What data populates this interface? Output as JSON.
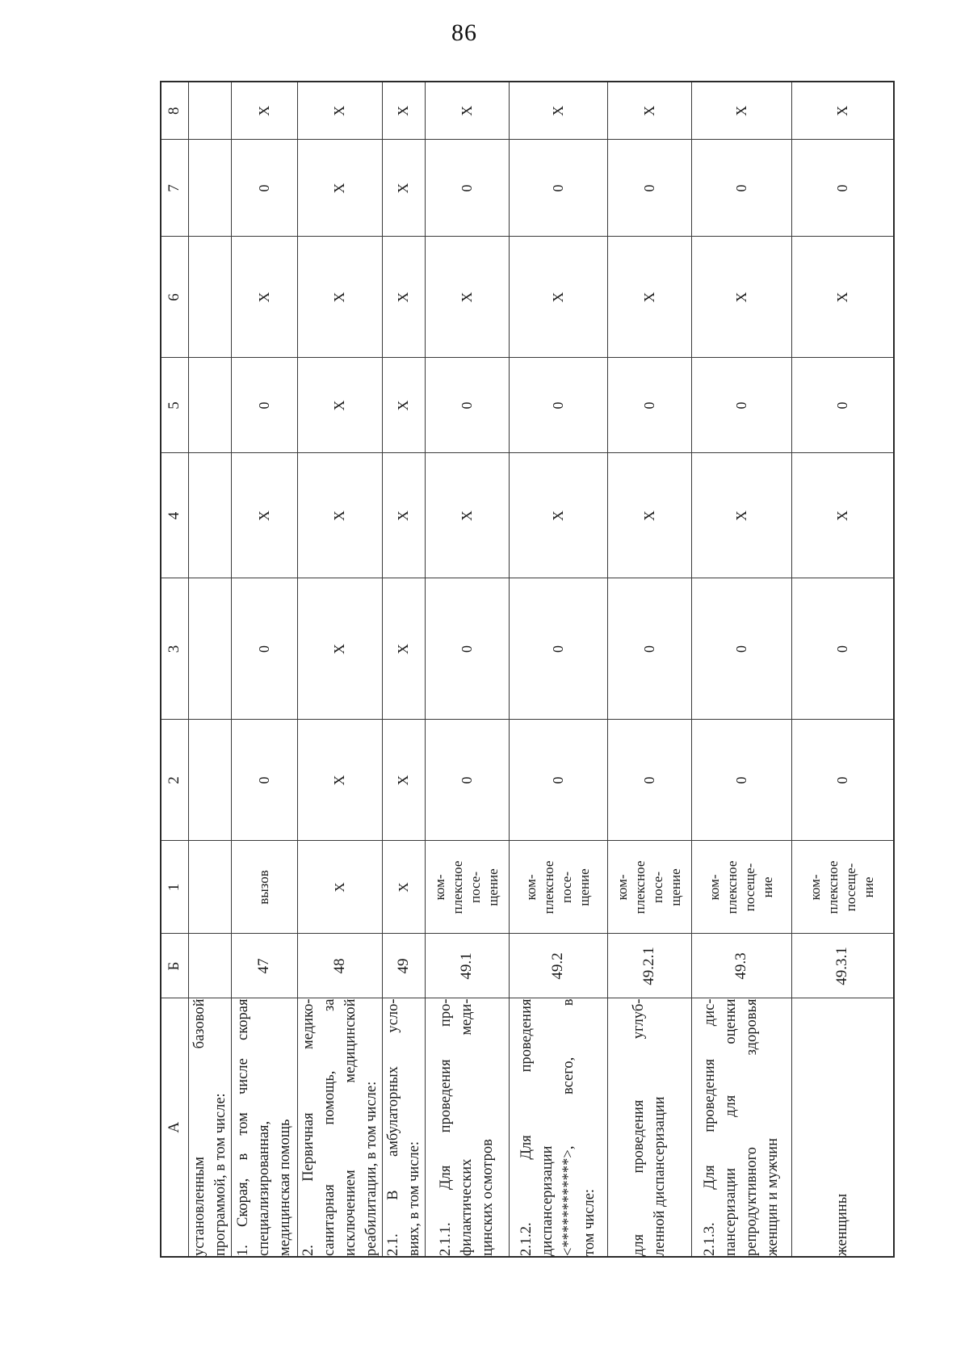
{
  "page": {
    "number": "86"
  },
  "table": {
    "header": [
      "А",
      "Б",
      "1",
      "2",
      "3",
      "4",
      "5",
      "6",
      "7",
      "8"
    ],
    "rows": [
      {
        "a": [
          "установленным базовой",
          "программой, в том числе:"
        ],
        "b": "",
        "unit": [],
        "values": [
          "",
          "",
          "",
          "",
          "",
          "",
          ""
        ]
      },
      {
        "a": [
          "1. Скорая, в том числе скорая",
          "специализированная,",
          "медицинская помощь"
        ],
        "b": "47",
        "unit": [
          "вызов"
        ],
        "values": [
          "0",
          "0",
          "X",
          "0",
          "X",
          "0",
          "X"
        ]
      },
      {
        "a": [
          "2. Первичная медико-",
          "санитарная помощь, за",
          "исключением медицинской",
          "реабилитации, в том числе:"
        ],
        "b": "48",
        "unit": [
          "X"
        ],
        "values": [
          "X",
          "X",
          "X",
          "X",
          "X",
          "X",
          "X"
        ]
      },
      {
        "a": [
          "2.1. В амбулаторных усло-",
          "виях, в том числе:"
        ],
        "b": "49",
        "unit": [
          "X"
        ],
        "values": [
          "X",
          "X",
          "X",
          "X",
          "X",
          "X",
          "X"
        ]
      },
      {
        "a": [
          "2.1.1. Для проведения про-",
          "филактических меди-",
          "цинских осмотров"
        ],
        "b": "49.1",
        "unit": [
          "ком-",
          "плексное",
          "посе-",
          "щение"
        ],
        "values": [
          "0",
          "0",
          "X",
          "0",
          "X",
          "0",
          "X"
        ]
      },
      {
        "a": [
          "2.1.2. Для проведения",
          "диспансеризации",
          "<************>, всего, в",
          "том числе:"
        ],
        "b": "49.2",
        "unit": [
          "ком-",
          "плексное",
          "посе-",
          "щение"
        ],
        "values": [
          "0",
          "0",
          "X",
          "0",
          "X",
          "0",
          "X"
        ]
      },
      {
        "a": [
          "для проведения углуб-",
          "ленной диспансеризации"
        ],
        "b": "49.2.1",
        "unit": [
          "ком-",
          "плексное",
          "посе-",
          "щение"
        ],
        "values": [
          "0",
          "0",
          "X",
          "0",
          "X",
          "0",
          "X"
        ]
      },
      {
        "a": [
          "2.1.3. Для проведения дис-",
          "пансеризации для оценки",
          "репродуктивного здоровья",
          "женщин и мужчин"
        ],
        "b": "49.3",
        "unit": [
          "ком-",
          "плексное",
          "посеще-",
          "ние"
        ],
        "values": [
          "0",
          "0",
          "X",
          "0",
          "X",
          "0",
          "X"
        ]
      },
      {
        "a": [
          "женщины"
        ],
        "b": "49.3.1",
        "unit": [
          "ком-",
          "плексное",
          "посеще-",
          "ние"
        ],
        "values": [
          "0",
          "0",
          "X",
          "0",
          "X",
          "0",
          "X"
        ]
      }
    ]
  }
}
